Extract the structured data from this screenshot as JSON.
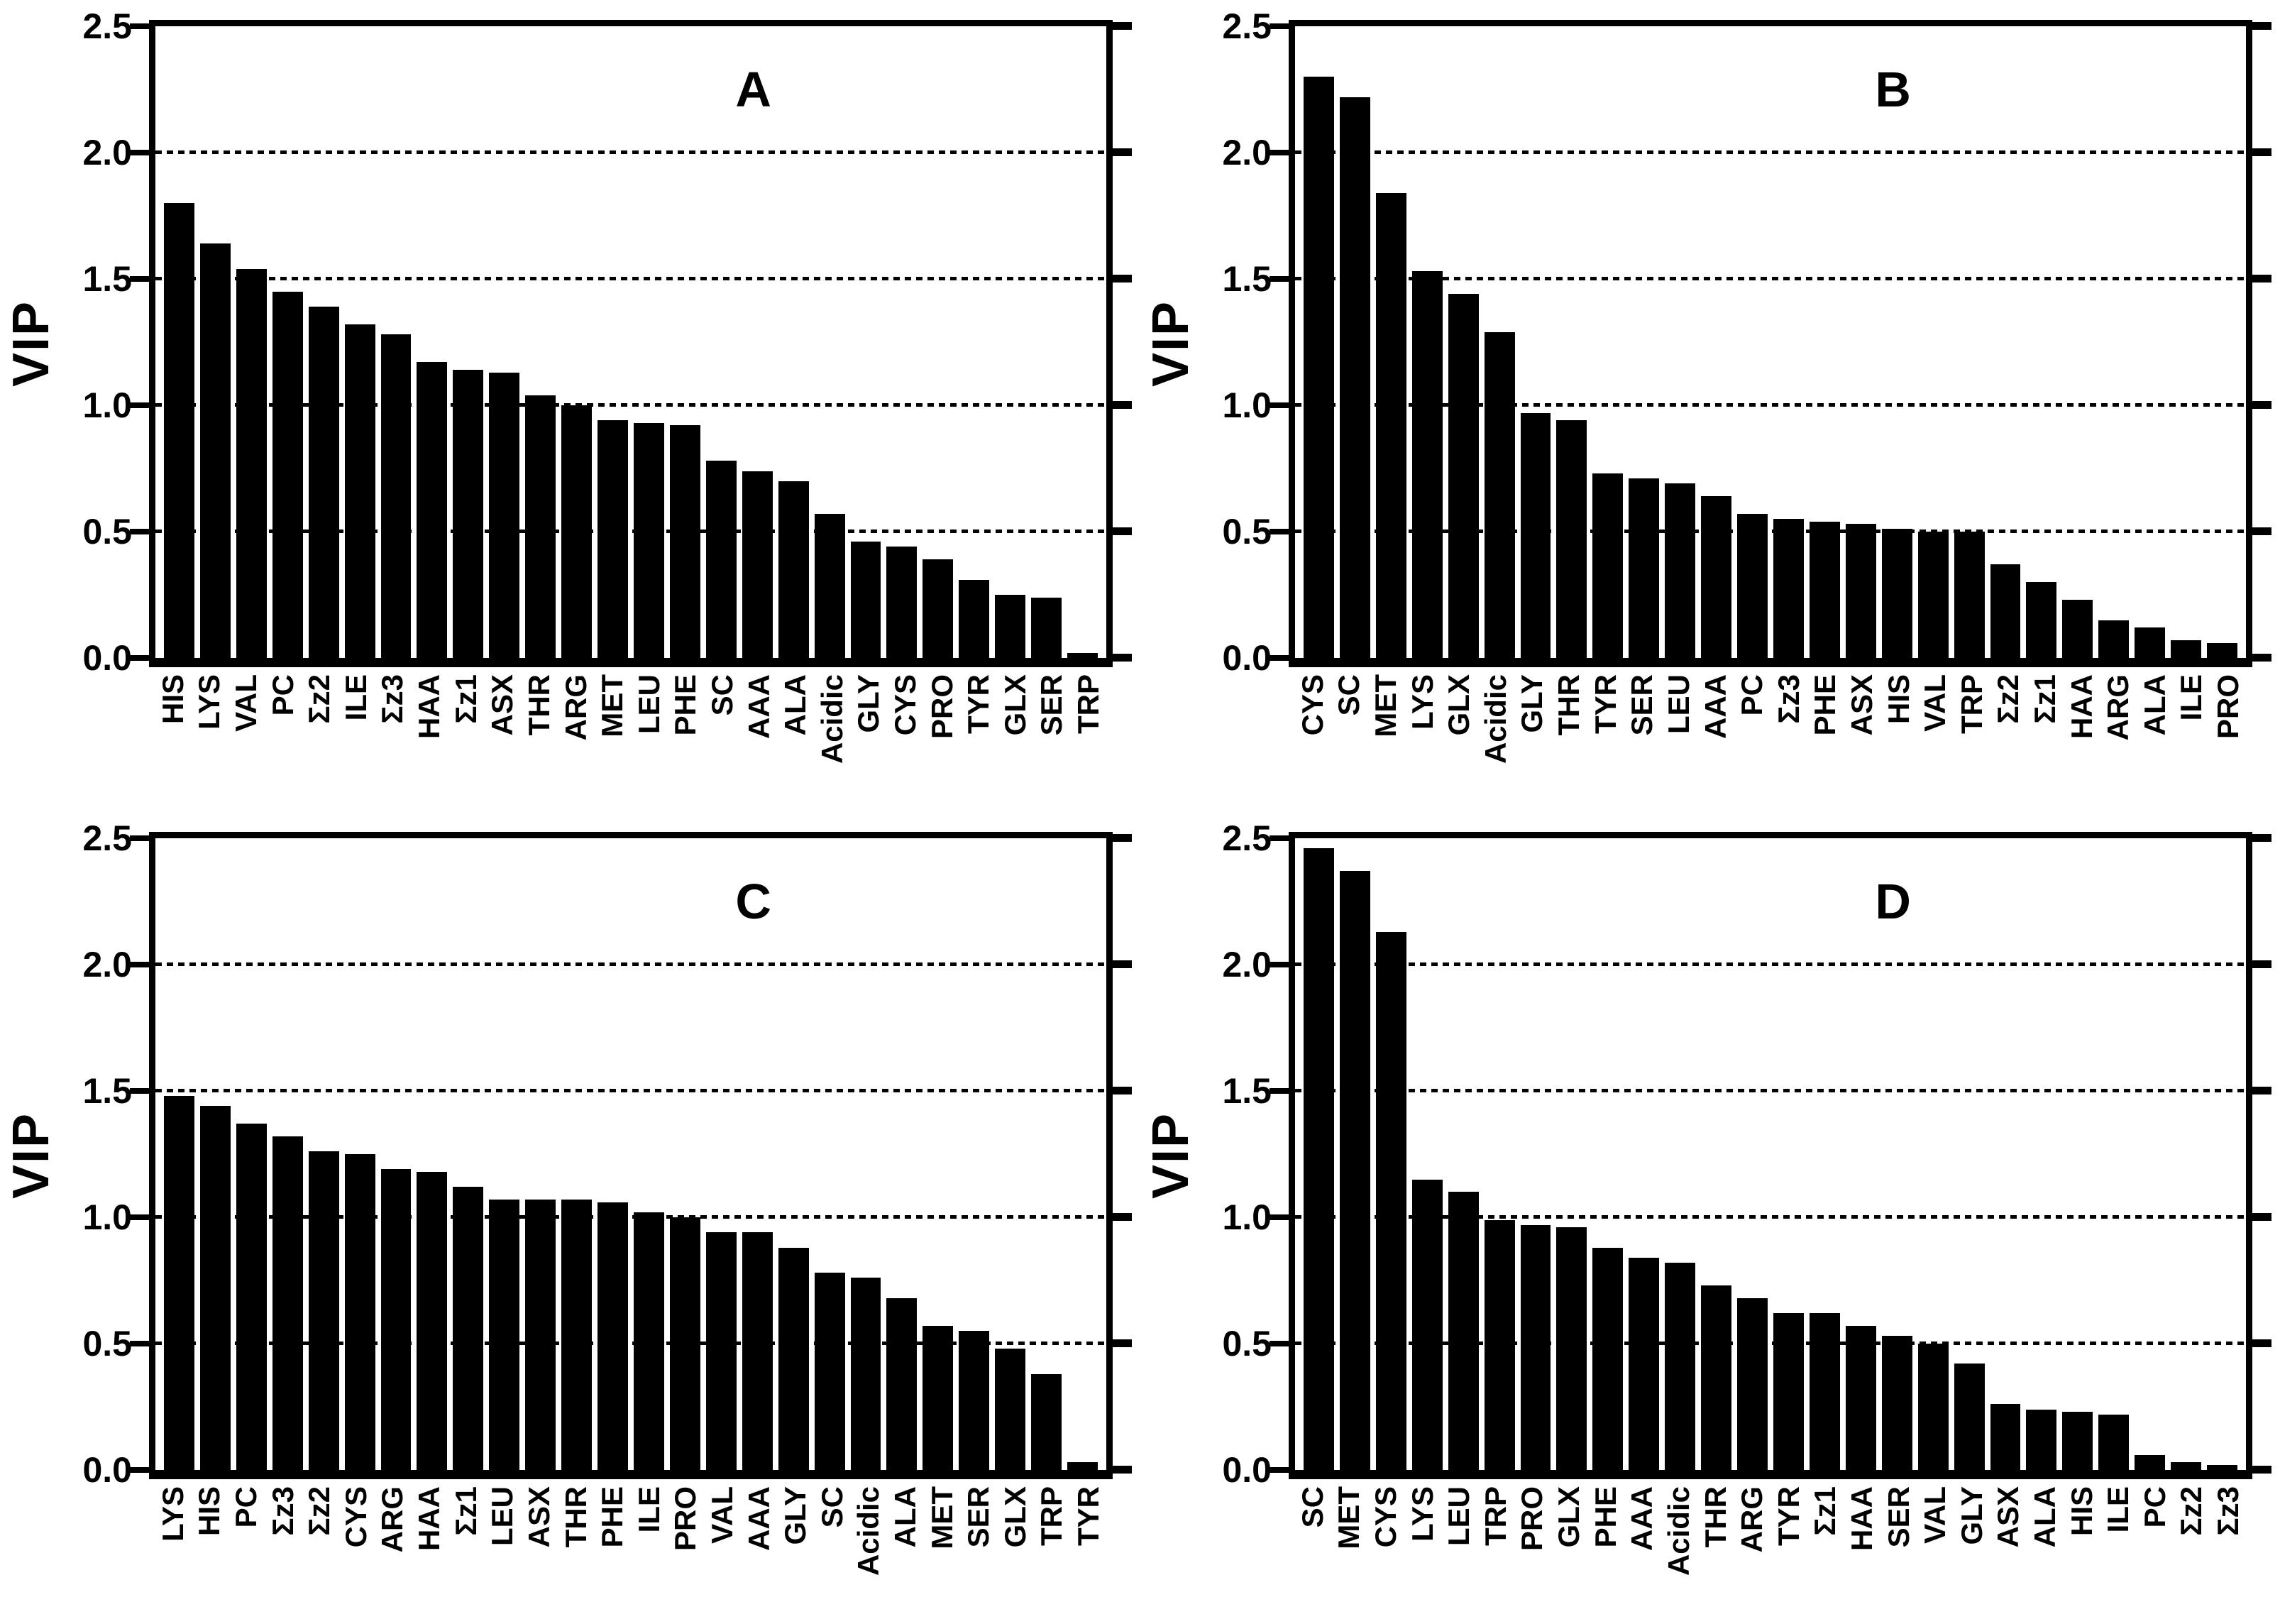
{
  "figure": {
    "ylabel": "VIP",
    "ylim": [
      0,
      2.5
    ],
    "yticks": [
      "0.0",
      "0.5",
      "1.0",
      "1.5",
      "2.0",
      "2.5"
    ],
    "ytick_values": [
      0,
      0.5,
      1.0,
      1.5,
      2.0,
      2.5
    ],
    "gridlines": [
      0.5,
      1.0,
      1.5,
      2.0
    ],
    "bar_color": "#000000",
    "background_color": "#ffffff",
    "grid_style": "dashed",
    "legend": "none"
  },
  "chart_data": [
    {
      "type": "bar",
      "panel_label": "A",
      "ylabel": "VIP",
      "ylim": [
        0,
        2.5
      ],
      "grid": true,
      "categories": [
        "HIS",
        "LYS",
        "VAL",
        "PC",
        "Σz2",
        "ILE",
        "Σz3",
        "HAA",
        "Σz1",
        "ASX",
        "THR",
        "ARG",
        "MET",
        "LEU",
        "PHE",
        "SC",
        "AAA",
        "ALA",
        "Acidic",
        "GLY",
        "CYS",
        "PRO",
        "TYR",
        "GLX",
        "SER",
        "TRP"
      ],
      "values": [
        1.8,
        1.64,
        1.54,
        1.45,
        1.39,
        1.32,
        1.28,
        1.17,
        1.14,
        1.13,
        1.04,
        1.0,
        0.94,
        0.93,
        0.92,
        0.78,
        0.74,
        0.7,
        0.57,
        0.46,
        0.44,
        0.39,
        0.31,
        0.25,
        0.24,
        0.02
      ]
    },
    {
      "type": "bar",
      "panel_label": "B",
      "ylabel": "VIP",
      "ylim": [
        0,
        2.5
      ],
      "grid": true,
      "categories": [
        "CYS",
        "SC",
        "MET",
        "LYS",
        "GLX",
        "Acidic",
        "GLY",
        "THR",
        "TYR",
        "SER",
        "LEU",
        "AAA",
        "PC",
        "Σz3",
        "PHE",
        "ASX",
        "HIS",
        "VAL",
        "TRP",
        "Σz2",
        "Σz1",
        "HAA",
        "ARG",
        "ALA",
        "ILE",
        "PRO"
      ],
      "values": [
        2.3,
        2.22,
        1.84,
        1.53,
        1.44,
        1.29,
        0.97,
        0.94,
        0.73,
        0.71,
        0.69,
        0.64,
        0.57,
        0.55,
        0.54,
        0.53,
        0.51,
        0.5,
        0.5,
        0.37,
        0.3,
        0.23,
        0.15,
        0.12,
        0.07,
        0.06
      ]
    },
    {
      "type": "bar",
      "panel_label": "C",
      "ylabel": "VIP",
      "ylim": [
        0,
        2.5
      ],
      "grid": true,
      "categories": [
        "LYS",
        "HIS",
        "PC",
        "Σz3",
        "Σz2",
        "CYS",
        "ARG",
        "HAA",
        "Σz1",
        "LEU",
        "ASX",
        "THR",
        "PHE",
        "ILE",
        "PRO",
        "VAL",
        "AAA",
        "GLY",
        "SC",
        "Acidic",
        "ALA",
        "MET",
        "SER",
        "GLX",
        "TRP",
        "TYR"
      ],
      "values": [
        1.48,
        1.44,
        1.37,
        1.32,
        1.26,
        1.25,
        1.19,
        1.18,
        1.12,
        1.07,
        1.07,
        1.07,
        1.06,
        1.02,
        1.0,
        0.94,
        0.94,
        0.88,
        0.78,
        0.76,
        0.68,
        0.57,
        0.55,
        0.48,
        0.38,
        0.03
      ]
    },
    {
      "type": "bar",
      "panel_label": "D",
      "ylabel": "VIP",
      "ylim": [
        0,
        2.5
      ],
      "grid": true,
      "categories": [
        "SC",
        "MET",
        "CYS",
        "LYS",
        "LEU",
        "TRP",
        "PRO",
        "GLX",
        "PHE",
        "AAA",
        "Acidic",
        "THR",
        "ARG",
        "TYR",
        "Σz1",
        "HAA",
        "SER",
        "VAL",
        "GLY",
        "ASX",
        "ALA",
        "HIS",
        "ILE",
        "PC",
        "Σz2",
        "Σz3"
      ],
      "values": [
        2.46,
        2.37,
        2.13,
        1.15,
        1.1,
        0.99,
        0.97,
        0.96,
        0.88,
        0.84,
        0.82,
        0.73,
        0.68,
        0.62,
        0.62,
        0.57,
        0.53,
        0.5,
        0.42,
        0.26,
        0.24,
        0.23,
        0.22,
        0.06,
        0.03,
        0.02
      ]
    }
  ]
}
